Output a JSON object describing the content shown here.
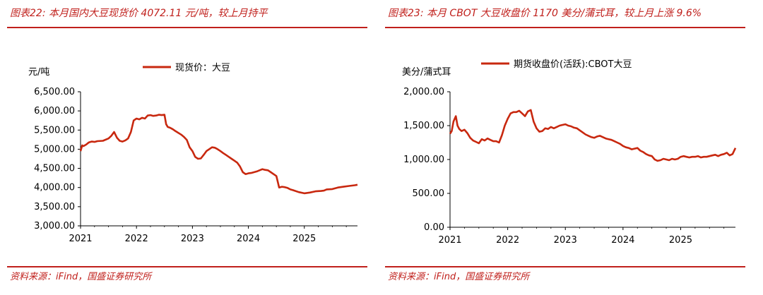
{
  "colors": {
    "accent": "#c0201c",
    "series": "#c8280f"
  },
  "chart_data": [
    {
      "type": "line",
      "figure_title": "图表22:  本月国内大豆现货价 4072.11 元/吨，较上月持平",
      "source": "资料来源：iFind，国盛证券研究所",
      "ylabel": "元/吨",
      "ylim": [
        3000,
        6500
      ],
      "y_ticks": [
        "6,500.00",
        "6,000.00",
        "5,500.00",
        "5,000.00",
        "4,500.00",
        "4,000.00",
        "3,500.00",
        "3,000.00"
      ],
      "x_ticks": [
        "2021",
        "2022",
        "2023",
        "2024",
        "2025"
      ],
      "xlim": [
        2021,
        2025.95
      ],
      "grid": false,
      "legend": "top-center",
      "series": [
        {
          "name": "现货价：大豆",
          "x": [
            2021.0,
            2021.03,
            2021.05,
            2021.1,
            2021.15,
            2021.2,
            2021.25,
            2021.3,
            2021.4,
            2021.5,
            2021.55,
            2021.6,
            2021.65,
            2021.7,
            2021.75,
            2021.8,
            2021.85,
            2021.9,
            2021.95,
            2022.0,
            2022.05,
            2022.1,
            2022.15,
            2022.2,
            2022.25,
            2022.3,
            2022.35,
            2022.4,
            2022.45,
            2022.5,
            2022.53,
            2022.56,
            2022.6,
            2022.65,
            2022.7,
            2022.8,
            2022.85,
            2022.9,
            2022.95,
            2023.0,
            2023.05,
            2023.1,
            2023.15,
            2023.2,
            2023.25,
            2023.3,
            2023.35,
            2023.4,
            2023.45,
            2023.5,
            2023.55,
            2023.6,
            2023.65,
            2023.7,
            2023.75,
            2023.8,
            2023.85,
            2023.9,
            2023.95,
            2024.0,
            2024.05,
            2024.1,
            2024.15,
            2024.2,
            2024.25,
            2024.3,
            2024.35,
            2024.4,
            2024.45,
            2024.5,
            2024.55,
            2024.6,
            2024.65,
            2024.7,
            2024.75,
            2024.8,
            2024.9,
            2025.0,
            2025.1,
            2025.2,
            2025.3,
            2025.35,
            2025.4,
            2025.5,
            2025.6,
            2025.7,
            2025.8,
            2025.9,
            2025.95
          ],
          "values": [
            4950,
            5100,
            5080,
            5120,
            5180,
            5200,
            5190,
            5210,
            5220,
            5280,
            5350,
            5450,
            5300,
            5220,
            5200,
            5230,
            5280,
            5450,
            5750,
            5800,
            5780,
            5820,
            5800,
            5880,
            5890,
            5870,
            5880,
            5900,
            5890,
            5900,
            5650,
            5580,
            5560,
            5520,
            5470,
            5380,
            5320,
            5240,
            5050,
            4950,
            4800,
            4750,
            4760,
            4850,
            4950,
            5000,
            5050,
            5040,
            5000,
            4950,
            4900,
            4850,
            4800,
            4750,
            4700,
            4650,
            4550,
            4400,
            4350,
            4370,
            4380,
            4400,
            4420,
            4450,
            4480,
            4460,
            4450,
            4400,
            4350,
            4300,
            4000,
            4020,
            4010,
            3990,
            3950,
            3930,
            3880,
            3850,
            3870,
            3900,
            3910,
            3920,
            3950,
            3960,
            4000,
            4020,
            4040,
            4060,
            4072.11
          ]
        }
      ]
    },
    {
      "type": "line",
      "figure_title": "图表23:  本月 CBOT 大豆收盘价 1170 美分/蒲式耳，较上月上涨 9.6%",
      "source": "资料来源：iFind，国盛证券研究所",
      "ylabel": "美分/蒲式耳",
      "ylim": [
        0,
        2000
      ],
      "y_ticks": [
        "2,000.00",
        "1,500.00",
        "1,000.00",
        "500.00",
        "0.00"
      ],
      "x_ticks": [
        "2021",
        "2022",
        "2023",
        "2024",
        "2025"
      ],
      "xlim": [
        2021,
        2025.95
      ],
      "grid": false,
      "legend": "top-center",
      "series": [
        {
          "name": "期货收盘价(活跃):CBOT大豆",
          "x": [
            2021.0,
            2021.03,
            2021.06,
            2021.1,
            2021.13,
            2021.16,
            2021.2,
            2021.25,
            2021.3,
            2021.35,
            2021.4,
            2021.45,
            2021.5,
            2021.55,
            2021.6,
            2021.65,
            2021.7,
            2021.75,
            2021.8,
            2021.85,
            2021.9,
            2021.95,
            2022.0,
            2022.05,
            2022.1,
            2022.15,
            2022.2,
            2022.25,
            2022.3,
            2022.35,
            2022.4,
            2022.45,
            2022.5,
            2022.55,
            2022.6,
            2022.65,
            2022.7,
            2022.75,
            2022.8,
            2022.85,
            2022.9,
            2022.95,
            2023.0,
            2023.05,
            2023.1,
            2023.15,
            2023.2,
            2023.25,
            2023.3,
            2023.35,
            2023.4,
            2023.45,
            2023.5,
            2023.55,
            2023.6,
            2023.65,
            2023.7,
            2023.75,
            2023.8,
            2023.85,
            2023.9,
            2023.95,
            2024.0,
            2024.05,
            2024.1,
            2024.15,
            2024.2,
            2024.25,
            2024.3,
            2024.35,
            2024.4,
            2024.45,
            2024.5,
            2024.55,
            2024.6,
            2024.65,
            2024.7,
            2024.75,
            2024.8,
            2024.85,
            2024.9,
            2024.95,
            2025.0,
            2025.05,
            2025.1,
            2025.15,
            2025.2,
            2025.25,
            2025.3,
            2025.35,
            2025.4,
            2025.45,
            2025.5,
            2025.55,
            2025.6,
            2025.65,
            2025.7,
            2025.75,
            2025.8,
            2025.85,
            2025.9,
            2025.95
          ],
          "values": [
            1380,
            1420,
            1560,
            1640,
            1500,
            1450,
            1420,
            1440,
            1390,
            1320,
            1280,
            1260,
            1240,
            1300,
            1280,
            1310,
            1290,
            1270,
            1270,
            1250,
            1360,
            1500,
            1600,
            1680,
            1700,
            1700,
            1720,
            1680,
            1640,
            1710,
            1730,
            1560,
            1460,
            1410,
            1420,
            1460,
            1450,
            1480,
            1460,
            1480,
            1500,
            1510,
            1520,
            1500,
            1490,
            1470,
            1460,
            1430,
            1400,
            1370,
            1350,
            1330,
            1320,
            1340,
            1350,
            1330,
            1310,
            1300,
            1290,
            1270,
            1250,
            1230,
            1200,
            1180,
            1170,
            1150,
            1160,
            1170,
            1130,
            1110,
            1080,
            1060,
            1050,
            1000,
            980,
            990,
            1010,
            1000,
            990,
            1010,
            1000,
            1010,
            1040,
            1050,
            1040,
            1030,
            1040,
            1040,
            1050,
            1030,
            1040,
            1040,
            1050,
            1060,
            1070,
            1050,
            1070,
            1080,
            1100,
            1060,
            1080,
            1170
          ]
        }
      ]
    }
  ]
}
